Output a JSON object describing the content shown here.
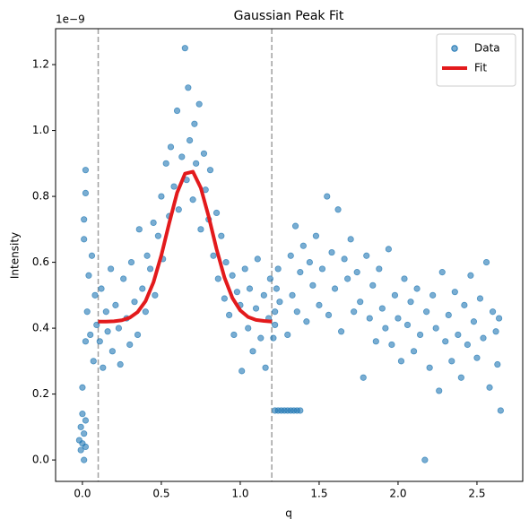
{
  "chart_data": {
    "type": "scatter",
    "title": "Gaussian Peak Fit",
    "x_label": "q",
    "y_label": "Intensity",
    "y_offset_label": "1e−9",
    "xlim": [
      -0.17,
      2.79
    ],
    "ylim": [
      -0.065,
      1.309
    ],
    "xticks": [
      {
        "value": 0,
        "label": "0.0"
      },
      0.5,
      {
        "value": 1,
        "label": "1.0"
      },
      1.5,
      {
        "value": 2,
        "label": "2.0"
      },
      2.5
    ],
    "yticks": [
      {
        "value": 0,
        "label": "0.0"
      },
      0.2,
      0.4,
      0.6,
      0.8,
      {
        "value": 1,
        "label": "1.0"
      },
      1.2
    ],
    "vlines": [
      0.1,
      1.2
    ],
    "vline_color": "#a0a0a0",
    "legend": "upper right",
    "grid": false,
    "series": [
      {
        "name": "Data",
        "type": "scatter",
        "color": "#1f77b4",
        "x": [
          -0.01,
          0,
          0.01,
          -0.01,
          0,
          0.02,
          0.01,
          -0.02,
          0.02,
          0,
          0.02,
          0.01,
          0.02,
          0.02,
          0.01,
          0.03,
          0.04,
          0.05,
          0.06,
          0.07,
          0.08,
          0.09,
          0.11,
          0.12,
          0.13,
          0.15,
          0.16,
          0.18,
          0.19,
          0.21,
          0.23,
          0.24,
          0.26,
          0.28,
          0.3,
          0.31,
          0.33,
          0.35,
          0.36,
          0.38,
          0.4,
          0.41,
          0.43,
          0.45,
          0.46,
          0.48,
          0.5,
          0.51,
          0.53,
          0.55,
          0.56,
          0.58,
          0.6,
          0.61,
          0.63,
          0.65,
          0.66,
          0.67,
          0.68,
          0.7,
          0.71,
          0.72,
          0.74,
          0.75,
          0.77,
          0.78,
          0.8,
          0.81,
          0.83,
          0.85,
          0.86,
          0.88,
          0.9,
          0.91,
          0.93,
          0.95,
          0.96,
          0.98,
          1,
          1.01,
          1.03,
          1.05,
          1.06,
          1.08,
          1.1,
          1.11,
          1.13,
          1.15,
          1.16,
          1.18,
          1.19,
          1.22,
          1.24,
          1.26,
          1.28,
          1.3,
          1.32,
          1.34,
          1.36,
          1.38,
          1.21,
          1.22,
          1.23,
          1.24,
          1.22,
          1.25,
          1.3,
          1.32,
          1.33,
          1.35,
          1.36,
          1.38,
          1.4,
          1.42,
          1.44,
          1.46,
          1.48,
          1.5,
          1.52,
          1.55,
          1.56,
          1.58,
          1.6,
          1.62,
          1.64,
          1.66,
          1.68,
          1.7,
          1.72,
          1.74,
          1.76,
          1.78,
          1.8,
          1.82,
          1.84,
          1.86,
          1.88,
          1.9,
          1.92,
          1.94,
          1.96,
          1.98,
          2,
          2.02,
          2.04,
          2.06,
          2.08,
          2.1,
          2.12,
          2.14,
          2.17,
          2.18,
          2.2,
          2.22,
          2.24,
          2.26,
          2.28,
          2.3,
          2.32,
          2.34,
          2.36,
          2.38,
          2.4,
          2.42,
          2.44,
          2.46,
          2.48,
          2.5,
          2.52,
          2.54,
          2.56,
          2.58,
          2.6,
          2.62,
          2.63,
          2.65,
          2.64
        ],
        "values": [
          0.03,
          0.05,
          0.08,
          0.1,
          0.14,
          0.04,
          0,
          0.06,
          0.12,
          0.22,
          0.36,
          0.73,
          0.81,
          0.88,
          0.67,
          0.45,
          0.56,
          0.38,
          0.62,
          0.3,
          0.5,
          0.41,
          0.36,
          0.52,
          0.28,
          0.45,
          0.39,
          0.58,
          0.33,
          0.47,
          0.4,
          0.29,
          0.55,
          0.43,
          0.35,
          0.6,
          0.48,
          0.38,
          0.7,
          0.52,
          0.45,
          0.62,
          0.58,
          0.72,
          0.5,
          0.68,
          0.8,
          0.61,
          0.9,
          0.74,
          0.95,
          0.83,
          1.06,
          0.76,
          0.92,
          1.25,
          0.85,
          1.13,
          0.97,
          0.79,
          1.02,
          0.9,
          1.08,
          0.7,
          0.93,
          0.82,
          0.73,
          0.88,
          0.62,
          0.75,
          0.55,
          0.68,
          0.49,
          0.6,
          0.44,
          0.56,
          0.38,
          0.51,
          0.47,
          0.27,
          0.58,
          0.4,
          0.52,
          0.33,
          0.46,
          0.61,
          0.37,
          0.5,
          0.28,
          0.43,
          0.55,
          0.15,
          0.15,
          0.15,
          0.15,
          0.15,
          0.15,
          0.15,
          0.15,
          0.15,
          0.37,
          0.45,
          0.52,
          0.58,
          0.41,
          0.48,
          0.38,
          0.62,
          0.5,
          0.71,
          0.45,
          0.57,
          0.65,
          0.42,
          0.6,
          0.53,
          0.68,
          0.47,
          0.58,
          0.8,
          0.44,
          0.63,
          0.52,
          0.76,
          0.39,
          0.61,
          0.55,
          0.67,
          0.45,
          0.57,
          0.48,
          0.25,
          0.62,
          0.43,
          0.53,
          0.36,
          0.58,
          0.46,
          0.4,
          0.64,
          0.35,
          0.5,
          0.43,
          0.3,
          0.55,
          0.41,
          0.48,
          0.33,
          0.52,
          0.38,
          0,
          0.45,
          0.28,
          0.5,
          0.4,
          0.21,
          0.57,
          0.36,
          0.44,
          0.3,
          0.51,
          0.38,
          0.25,
          0.47,
          0.35,
          0.56,
          0.42,
          0.31,
          0.49,
          0.37,
          0.6,
          0.22,
          0.45,
          0.39,
          0.29,
          0.15,
          0.43
        ]
      },
      {
        "name": "Fit",
        "type": "line",
        "color": "#e31a1c",
        "x": [
          0.1,
          0.15,
          0.2,
          0.25,
          0.3,
          0.35,
          0.4,
          0.45,
          0.5,
          0.55,
          0.6,
          0.65,
          0.7,
          0.75,
          0.8,
          0.85,
          0.9,
          0.95,
          1,
          1.05,
          1.1,
          1.15,
          1.2
        ],
        "values": [
          0.42,
          0.42,
          0.421,
          0.424,
          0.432,
          0.449,
          0.482,
          0.539,
          0.621,
          0.719,
          0.811,
          0.869,
          0.875,
          0.826,
          0.739,
          0.64,
          0.554,
          0.492,
          0.454,
          0.434,
          0.425,
          0.422,
          0.42
        ]
      }
    ]
  }
}
